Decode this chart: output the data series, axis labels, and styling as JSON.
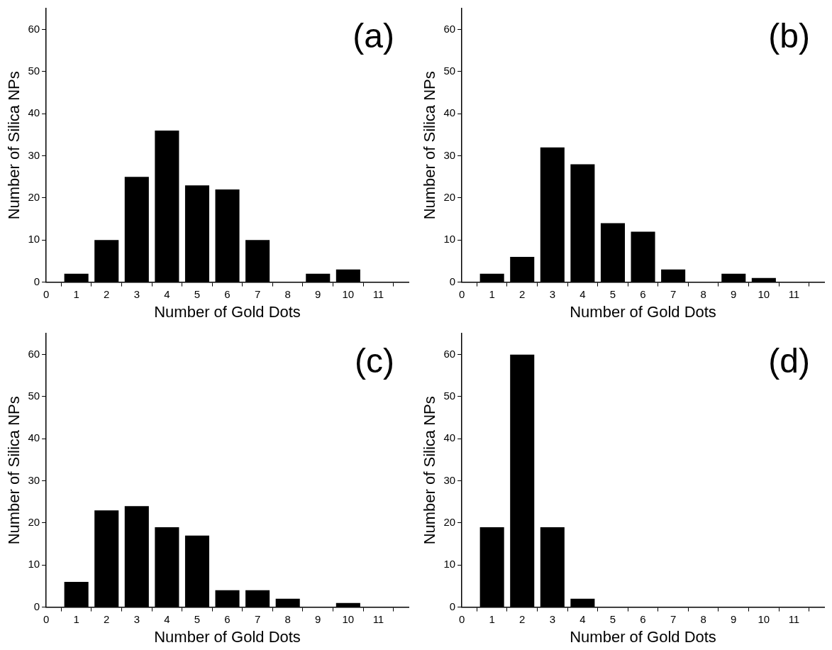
{
  "chart_data": [
    {
      "type": "bar",
      "x": [
        1,
        2,
        3,
        4,
        5,
        6,
        7,
        9,
        10
      ],
      "values": [
        2,
        10,
        25,
        36,
        23,
        22,
        10,
        2,
        3
      ],
      "color": "#000000",
      "xlabel": "Number of Gold Dots",
      "ylabel": "Number of Silica NPs",
      "xlim": [
        0,
        12
      ],
      "xticks": [
        0,
        1,
        2,
        3,
        4,
        5,
        6,
        7,
        8,
        9,
        10,
        11
      ],
      "ylim": [
        0,
        65
      ],
      "yticks": [
        0,
        10,
        20,
        30,
        40,
        50,
        60
      ],
      "annotations": [
        "(a)"
      ],
      "grid": false,
      "legend": false
    },
    {
      "type": "bar",
      "x": [
        1,
        2,
        3,
        4,
        5,
        6,
        7,
        9,
        10
      ],
      "values": [
        2,
        6,
        32,
        28,
        14,
        12,
        3,
        2,
        1
      ],
      "color": "#000000",
      "xlabel": "Number of Gold Dots",
      "ylabel": "Number of Silica NPs",
      "xlim": [
        0,
        12
      ],
      "xticks": [
        0,
        1,
        2,
        3,
        4,
        5,
        6,
        7,
        8,
        9,
        10,
        11
      ],
      "ylim": [
        0,
        65
      ],
      "yticks": [
        0,
        10,
        20,
        30,
        40,
        50,
        60
      ],
      "annotations": [
        "(b)"
      ],
      "grid": false,
      "legend": false
    },
    {
      "type": "bar",
      "x": [
        1,
        2,
        3,
        4,
        5,
        6,
        7,
        8,
        10
      ],
      "values": [
        6,
        23,
        24,
        19,
        17,
        4,
        4,
        2,
        1
      ],
      "color": "#000000",
      "xlabel": "Number of Gold Dots",
      "ylabel": "Number of Silica NPs",
      "xlim": [
        0,
        12
      ],
      "xticks": [
        0,
        1,
        2,
        3,
        4,
        5,
        6,
        7,
        8,
        9,
        10,
        11
      ],
      "ylim": [
        0,
        65
      ],
      "yticks": [
        0,
        10,
        20,
        30,
        40,
        50,
        60
      ],
      "annotations": [
        "(c)"
      ],
      "grid": false,
      "legend": false
    },
    {
      "type": "bar",
      "x": [
        1,
        2,
        3,
        4
      ],
      "values": [
        19,
        60,
        19,
        2
      ],
      "color": "#000000",
      "xlabel": "Number of Gold Dots",
      "ylabel": "Number of Silica NPs",
      "xlim": [
        0,
        12
      ],
      "xticks": [
        0,
        1,
        2,
        3,
        4,
        5,
        6,
        7,
        8,
        9,
        10,
        11
      ],
      "ylim": [
        0,
        65
      ],
      "yticks": [
        0,
        10,
        20,
        30,
        40,
        50,
        60
      ],
      "annotations": [
        "(d)"
      ],
      "grid": false,
      "legend": false
    }
  ]
}
